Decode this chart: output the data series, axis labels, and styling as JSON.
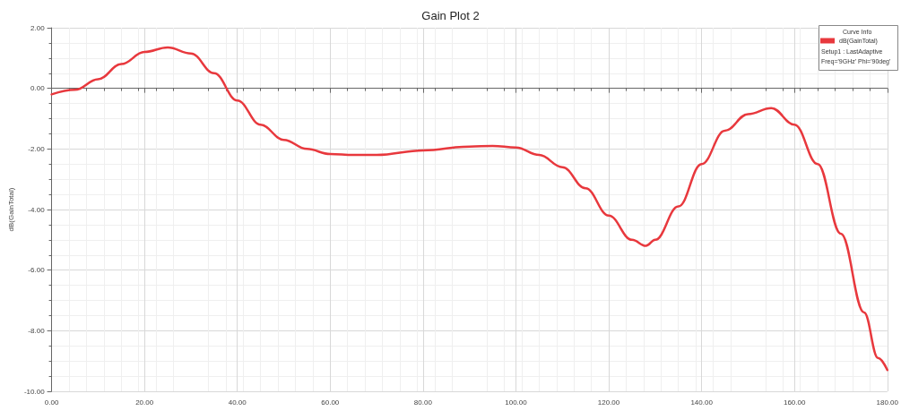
{
  "chart_data": {
    "type": "line",
    "title": "Gain Plot 2",
    "ylabel": "dB(GainTotal)",
    "legend_title": "Curve Info",
    "annotations": [
      "Setup1 : LastAdaptive",
      "Freq='9GHz' Phi='90deg'"
    ],
    "x": [
      0,
      5,
      10,
      15,
      20,
      25,
      30,
      35,
      40,
      45,
      50,
      55,
      60,
      65,
      70,
      80,
      90,
      95,
      100,
      105,
      110,
      115,
      120,
      125,
      128,
      130,
      135,
      140,
      145,
      150,
      155,
      160,
      165,
      170,
      175,
      178,
      180
    ],
    "series": [
      {
        "name": "dB(GainTotal)",
        "color": "#e8383d",
        "values": [
          -0.2,
          -0.05,
          0.3,
          0.8,
          1.2,
          1.35,
          1.15,
          0.5,
          -0.4,
          -1.2,
          -1.7,
          -2.0,
          -2.17,
          -2.2,
          -2.2,
          -2.05,
          -1.92,
          -1.9,
          -1.95,
          -2.2,
          -2.6,
          -3.3,
          -4.2,
          -5.0,
          -5.2,
          -5.0,
          -3.9,
          -2.5,
          -1.4,
          -0.85,
          -0.65,
          -1.2,
          -2.5,
          -4.8,
          -7.4,
          -8.9,
          -9.3
        ]
      }
    ],
    "xlim": [
      0,
      180
    ],
    "xticks": [
      {
        "value": 0,
        "label": "0.00"
      },
      {
        "value": 20,
        "label": "20.00"
      },
      {
        "value": 40,
        "label": "40.00"
      },
      {
        "value": 60,
        "label": "60.00"
      },
      {
        "value": 80,
        "label": "80.00"
      },
      {
        "value": 100,
        "label": "100.00"
      },
      {
        "value": 120,
        "label": "120.00"
      },
      {
        "value": 140,
        "label": "140.00"
      },
      {
        "value": 160,
        "label": "160.00"
      },
      {
        "value": 180,
        "label": "180.00"
      }
    ],
    "ylim": [
      -10,
      2
    ],
    "yticks": [
      {
        "value": -10,
        "label": "-10.00"
      },
      {
        "value": -8,
        "label": "-8.00"
      },
      {
        "value": -6,
        "label": "-6.00"
      },
      {
        "value": -4,
        "label": "-4.00"
      },
      {
        "value": -2,
        "label": "-2.00"
      },
      {
        "value": 0,
        "label": "0.00"
      },
      {
        "value": 2,
        "label": "2.00"
      }
    ],
    "grid": true,
    "legend": "top right",
    "marker": "none",
    "line_style": "solid"
  }
}
